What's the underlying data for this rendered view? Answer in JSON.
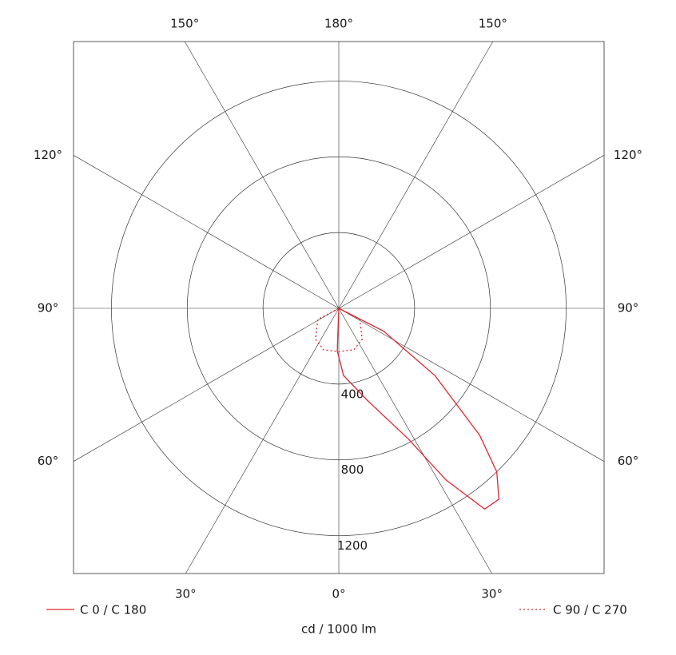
{
  "chart_data": {
    "type": "polar",
    "r_label": "cd / 1000 lm",
    "rlim": [
      0,
      1400
    ],
    "rticks": [
      400,
      800,
      1200
    ],
    "angle_ticks": [
      {
        "value": -150,
        "label": "150°"
      },
      {
        "value": 180,
        "label": "180°"
      },
      {
        "value": 150,
        "label": "150°"
      },
      {
        "value": -120,
        "label": "120°"
      },
      {
        "value": 120,
        "label": "120°"
      },
      {
        "value": -90,
        "label": "90°"
      },
      {
        "value": 90,
        "label": "90°"
      },
      {
        "value": -60,
        "label": "60°"
      },
      {
        "value": 60,
        "label": "60°"
      },
      {
        "value": -30,
        "label": "30°"
      },
      {
        "value": 0,
        "label": "0°"
      },
      {
        "value": 30,
        "label": "30°"
      }
    ],
    "series": [
      {
        "name": "C 0 / C 180",
        "color": "#e3262e",
        "style": "solid",
        "angles": [
          0,
          -2,
          4,
          17,
          28,
          32,
          36,
          40,
          44,
          48,
          55,
          63,
          90
        ],
        "values": [
          0,
          225,
          355,
          505,
          780,
          1070,
          1310,
          1315,
          1200,
          1000,
          620,
          265,
          0
        ]
      },
      {
        "name": "C 90 / C 270",
        "color": "#e3262e",
        "style": "dotted",
        "angles": [
          -90,
          -62,
          -37,
          -20,
          0,
          20,
          37,
          62,
          90
        ],
        "values": [
          0,
          125,
          205,
          233,
          228,
          233,
          205,
          125,
          0
        ]
      }
    ]
  }
}
